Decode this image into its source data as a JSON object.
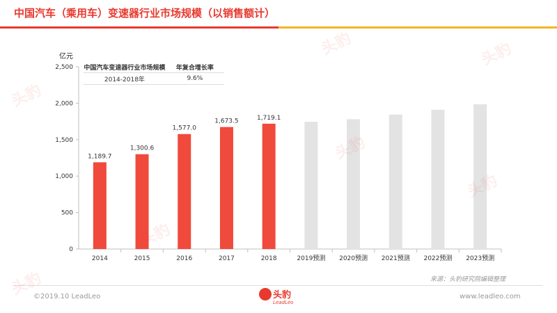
{
  "header": {
    "title": "中国汽车（乘用车）变速器行业市场规模（以销售额计）"
  },
  "chart_data": {
    "type": "bar",
    "unit": "亿元",
    "categories": [
      "2014",
      "2015",
      "2016",
      "2017",
      "2018",
      "2019预测",
      "2020预测",
      "2021预测",
      "2022预测",
      "2023预测"
    ],
    "values": [
      1189.7,
      1300.6,
      1577.0,
      1673.5,
      1719.1,
      1745,
      1780,
      1845,
      1910,
      1985
    ],
    "value_labels": [
      "1,189.7",
      "1,300.6",
      "1,577.0",
      "1,673.5",
      "1,719.1",
      "",
      "",
      "",
      "",
      ""
    ],
    "forecast": [
      false,
      false,
      false,
      false,
      false,
      true,
      true,
      true,
      true,
      true
    ],
    "yticks": [
      "0",
      "500",
      "1,000",
      "1,500",
      "2,000",
      "2,500"
    ],
    "ylim": [
      0,
      2500
    ],
    "colors": {
      "actual": "#f04a3c",
      "forecast": "#e3e3e3"
    }
  },
  "cagr_table": {
    "header": [
      "中国汽车变速器行业市场规模",
      "年复合增长率"
    ],
    "row": [
      "2014-2018年",
      "9.6%"
    ]
  },
  "source": "来源：头豹研究院编辑整理",
  "footer": {
    "copyright": "©2019.10 LeadLeo",
    "website": "www.leadleo.com",
    "logo_cn": "头豹",
    "logo_en": "LeadLeo"
  },
  "watermark": "头豹"
}
